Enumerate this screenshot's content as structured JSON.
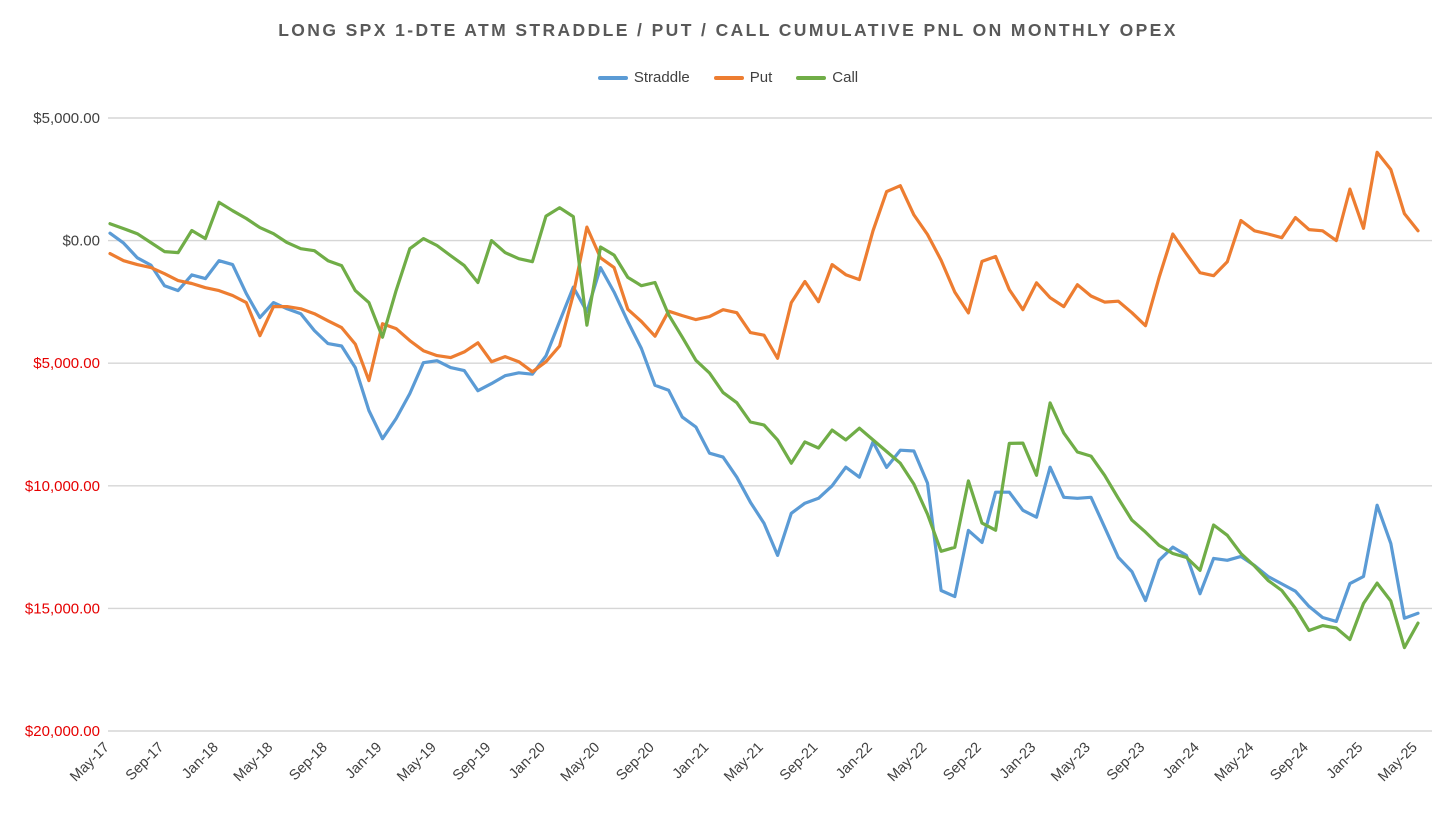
{
  "title": "LONG SPX 1-DTE ATM STRADDLE / PUT / CALL CUMULATIVE PNL ON MONTHLY OPEX",
  "colors": {
    "straddle": "#5B9BD5",
    "put": "#ED7D31",
    "call": "#70AD47",
    "gridline": "#D6D6D6",
    "axis_text": "#404040",
    "negative_axis_text": "#E60000",
    "title_text": "#595959",
    "background": "#FFFFFF"
  },
  "legend": [
    {
      "label": "Straddle",
      "color": "#5B9BD5"
    },
    {
      "label": "Put",
      "color": "#ED7D31"
    },
    {
      "label": "Call",
      "color": "#70AD47"
    }
  ],
  "chart_data": {
    "type": "line",
    "title": "LONG SPX 1-DTE ATM STRADDLE / PUT / CALL CUMULATIVE PNL ON MONTHLY OPEX",
    "xlabel": "",
    "ylabel": "",
    "ylim": [
      -20000,
      5000
    ],
    "y_tick_step": 5000,
    "grid": "horizontal",
    "legend_position": "top",
    "x_tick_every": 4,
    "x": [
      "May-17",
      "Jun-17",
      "Jul-17",
      "Aug-17",
      "Sep-17",
      "Oct-17",
      "Nov-17",
      "Dec-17",
      "Jan-18",
      "Feb-18",
      "Mar-18",
      "Apr-18",
      "May-18",
      "Jun-18",
      "Jul-18",
      "Aug-18",
      "Sep-18",
      "Oct-18",
      "Nov-18",
      "Dec-18",
      "Jan-19",
      "Feb-19",
      "Mar-19",
      "Apr-19",
      "May-19",
      "Jun-19",
      "Jul-19",
      "Aug-19",
      "Sep-19",
      "Oct-19",
      "Nov-19",
      "Dec-19",
      "Jan-20",
      "Feb-20",
      "Mar-20",
      "Apr-20",
      "May-20",
      "Jun-20",
      "Jul-20",
      "Aug-20",
      "Sep-20",
      "Oct-20",
      "Nov-20",
      "Dec-20",
      "Jan-21",
      "Feb-21",
      "Mar-21",
      "Apr-21",
      "May-21",
      "Jun-21",
      "Jul-21",
      "Aug-21",
      "Sep-21",
      "Oct-21",
      "Nov-21",
      "Dec-21",
      "Jan-22",
      "Feb-22",
      "Mar-22",
      "Apr-22",
      "May-22",
      "Jun-22",
      "Jul-22",
      "Aug-22",
      "Sep-22",
      "Oct-22",
      "Nov-22",
      "Dec-22",
      "Jan-23",
      "Feb-23",
      "Mar-23",
      "Apr-23",
      "May-23",
      "Jun-23",
      "Jul-23",
      "Aug-23",
      "Sep-23",
      "Oct-23",
      "Nov-23",
      "Dec-23",
      "Jan-24",
      "Feb-24",
      "Mar-24",
      "Apr-24",
      "May-24",
      "Jun-24",
      "Jul-24",
      "Aug-24",
      "Sep-24",
      "Oct-24",
      "Nov-24",
      "Dec-24",
      "Jan-25",
      "Feb-25",
      "Mar-25",
      "Apr-25",
      "May-25"
    ],
    "y_ticks": [
      {
        "label": "$5,000.00",
        "value": 5000,
        "color": "#404040"
      },
      {
        "label": "$0.00",
        "value": 0,
        "color": "#404040"
      },
      {
        "label": "$5,000.00",
        "value": -5000,
        "color": "#E60000"
      },
      {
        "label": "$10,000.00",
        "value": -10000,
        "color": "#E60000"
      },
      {
        "label": "$15,000.00",
        "value": -15000,
        "color": "#E60000"
      },
      {
        "label": "$20,000.00",
        "value": -20000,
        "color": "#E60000"
      }
    ],
    "series": [
      {
        "name": "Straddle",
        "color": "#5B9BD5",
        "values": [
          300,
          -100,
          -700,
          -1000,
          -1840,
          -2040,
          -1400,
          -1550,
          -820,
          -980,
          -2160,
          -3140,
          -2530,
          -2780,
          -2980,
          -3670,
          -4200,
          -4300,
          -5180,
          -6930,
          -8080,
          -7260,
          -6240,
          -4980,
          -4900,
          -5180,
          -5300,
          -6120,
          -5830,
          -5510,
          -5390,
          -5450,
          -4700,
          -3300,
          -1900,
          -2900,
          -1100,
          -2100,
          -3300,
          -4400,
          -5900,
          -6100,
          -7200,
          -7600,
          -8670,
          -8830,
          -9650,
          -10670,
          -11530,
          -12840,
          -11120,
          -10710,
          -10510,
          -10000,
          -9240,
          -9650,
          -8210,
          -9250,
          -8550,
          -8580,
          -9890,
          -14270,
          -14520,
          -11820,
          -12310,
          -10260,
          -10260,
          -11000,
          -11280,
          -9240,
          -10470,
          -10510,
          -10470,
          -11690,
          -12920,
          -13500,
          -14680,
          -13040,
          -12500,
          -12840,
          -14400,
          -12960,
          -13040,
          -12880,
          -13250,
          -13700,
          -14000,
          -14300,
          -14920,
          -15370,
          -15530,
          -13990,
          -13700,
          -10790,
          -12350,
          -15400,
          -15200
        ]
      },
      {
        "name": "Put",
        "color": "#ED7D31",
        "values": [
          -530,
          -820,
          -980,
          -1100,
          -1350,
          -1630,
          -1750,
          -1920,
          -2040,
          -2240,
          -2530,
          -3880,
          -2690,
          -2690,
          -2780,
          -2980,
          -3270,
          -3550,
          -4220,
          -5710,
          -3390,
          -3590,
          -4080,
          -4490,
          -4690,
          -4770,
          -4540,
          -4170,
          -4940,
          -4730,
          -4940,
          -5350,
          -4940,
          -4300,
          -2200,
          550,
          -700,
          -1100,
          -2800,
          -3300,
          -3900,
          -2880,
          -3060,
          -3220,
          -3100,
          -2820,
          -2940,
          -3750,
          -3860,
          -4800,
          -2530,
          -1670,
          -2490,
          -980,
          -1390,
          -1590,
          400,
          2000,
          2240,
          1050,
          250,
          -800,
          -2100,
          -2950,
          -850,
          -650,
          -2000,
          -2820,
          -1720,
          -2330,
          -2690,
          -1800,
          -2260,
          -2510,
          -2470,
          -2940,
          -3470,
          -1500,
          270,
          -540,
          -1310,
          -1430,
          -860,
          820,
          400,
          270,
          120,
          940,
          450,
          400,
          0,
          2100,
          500,
          3600,
          2900,
          1100,
          400
        ]
      },
      {
        "name": "Call",
        "color": "#70AD47",
        "values": [
          690,
          490,
          280,
          -80,
          -450,
          -490,
          410,
          80,
          1560,
          1220,
          900,
          530,
          280,
          -80,
          -330,
          -410,
          -820,
          -1020,
          -2040,
          -2530,
          -3940,
          -2040,
          -330,
          80,
          -200,
          -610,
          -1020,
          -1710,
          0,
          -490,
          -740,
          -860,
          1000,
          1340,
          980,
          -3450,
          -260,
          -590,
          -1500,
          -1840,
          -1710,
          -3020,
          -3940,
          -4880,
          -5400,
          -6200,
          -6610,
          -7400,
          -7520,
          -8130,
          -9080,
          -8210,
          -8460,
          -7730,
          -8130,
          -7650,
          -8130,
          -8600,
          -9080,
          -9930,
          -11160,
          -12670,
          -12510,
          -9800,
          -11520,
          -11810,
          -8270,
          -8260,
          -9570,
          -6620,
          -7850,
          -8620,
          -8790,
          -9570,
          -10510,
          -11400,
          -11890,
          -12430,
          -12760,
          -12920,
          -13450,
          -11600,
          -12020,
          -12760,
          -13270,
          -13860,
          -14270,
          -15000,
          -15900,
          -15700,
          -15800,
          -16270,
          -14800,
          -13970,
          -14700,
          -16600,
          -15600
        ]
      }
    ]
  }
}
